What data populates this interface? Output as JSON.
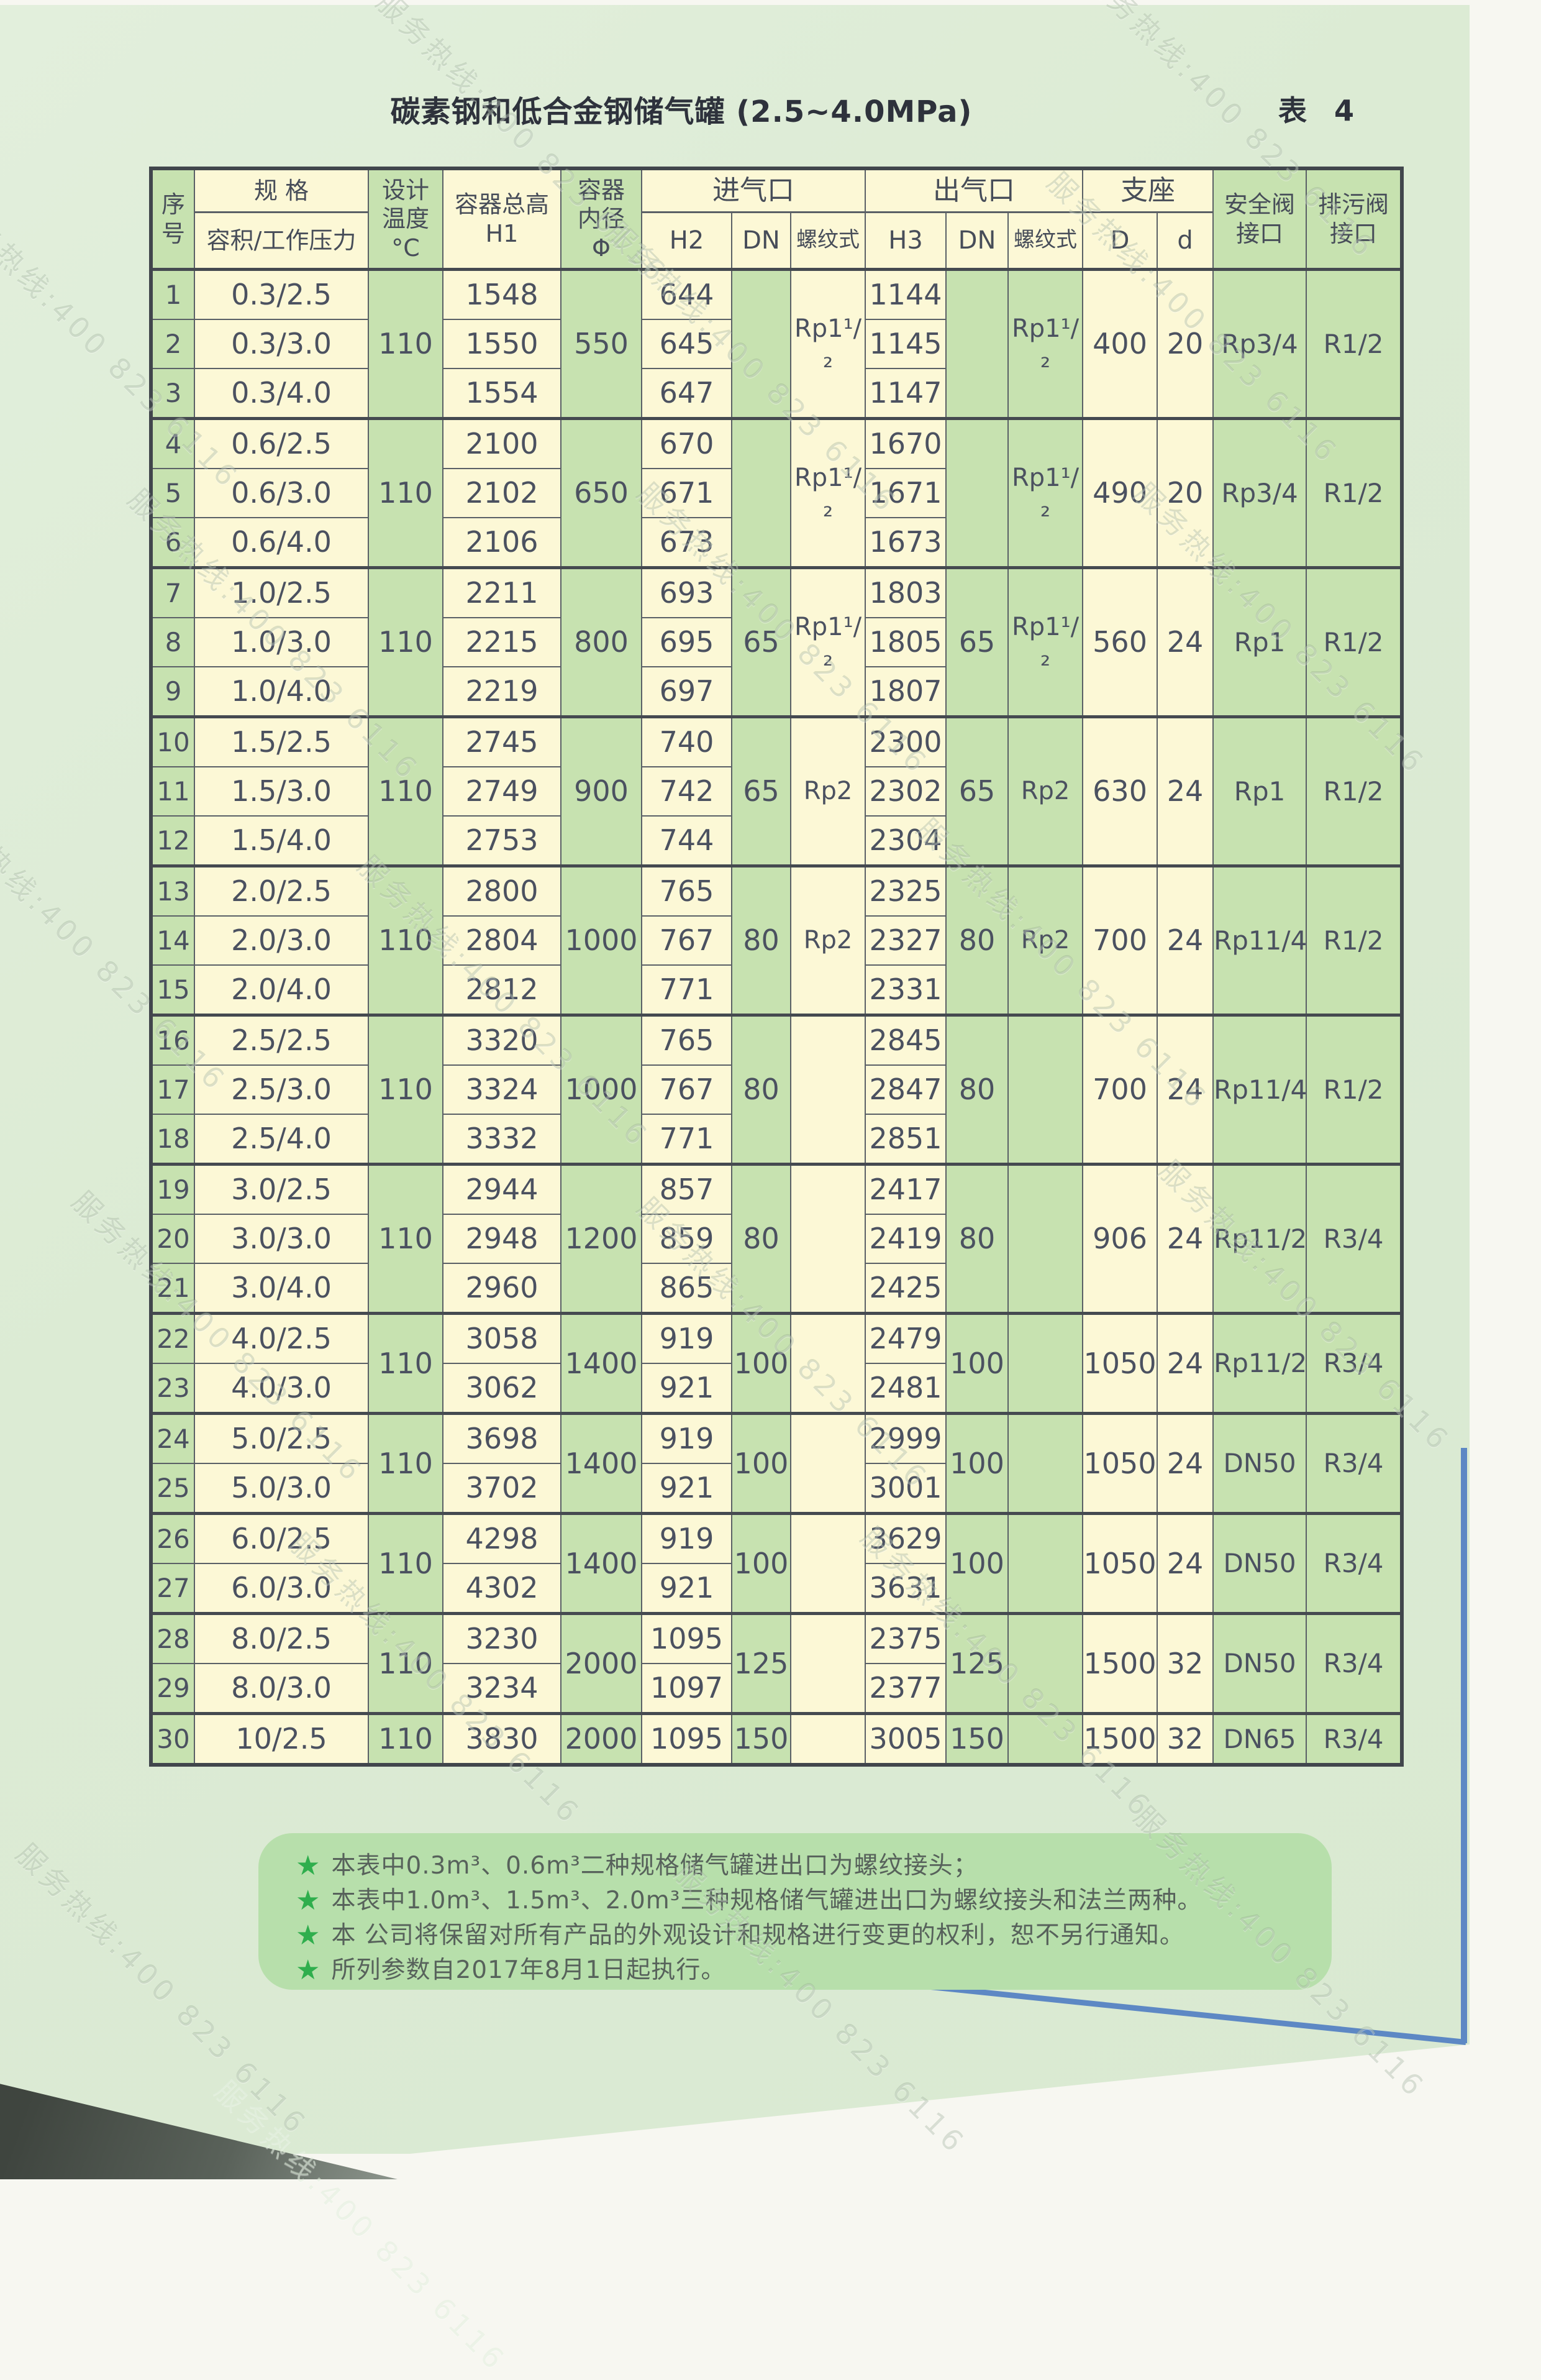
{
  "page": {
    "title": "碳素钢和低合金钢储气罐 (2.5~4.0MPa)",
    "table_label": "表 4"
  },
  "watermark": {
    "text": "服务热线:400 823 6116"
  },
  "table": {
    "header": {
      "serial": "序\n号",
      "spec": "规  格",
      "spec_sub": "容积/工作压力",
      "temp": "设计\n温度\n°C",
      "h1": "容器总高\nH1",
      "phi": "容器\n内径\nΦ",
      "inlet": "进气口",
      "outlet": "出气口",
      "support": "支座",
      "h2": "H2",
      "dn": "DN",
      "thread": "螺纹式",
      "h3": "H3",
      "D": "D",
      "d": "d",
      "safety": "安全阀\n接口",
      "drain": "排污阀\n接口"
    },
    "groups": [
      {
        "rows": [
          [
            "1",
            "0.3/2.5",
            "1548",
            "644",
            "1144"
          ],
          [
            "2",
            "0.3/3.0",
            "1550",
            "645",
            "1145"
          ],
          [
            "3",
            "0.3/4.0",
            "1554",
            "647",
            "1147"
          ]
        ],
        "temp": "110",
        "phi": "550",
        "dn_in": "",
        "thread_in": "Rp1¹/₂",
        "dn_out": "",
        "thread_out": "Rp1¹/₂",
        "D": "400",
        "d": "20",
        "safety": "Rp3/4",
        "drain": "R1/2"
      },
      {
        "rows": [
          [
            "4",
            "0.6/2.5",
            "2100",
            "670",
            "1670"
          ],
          [
            "5",
            "0.6/3.0",
            "2102",
            "671",
            "1671"
          ],
          [
            "6",
            "0.6/4.0",
            "2106",
            "673",
            "1673"
          ]
        ],
        "temp": "110",
        "phi": "650",
        "dn_in": "",
        "thread_in": "Rp1¹/₂",
        "dn_out": "",
        "thread_out": "Rp1¹/₂",
        "D": "490",
        "d": "20",
        "safety": "Rp3/4",
        "drain": "R1/2"
      },
      {
        "rows": [
          [
            "7",
            "1.0/2.5",
            "2211",
            "693",
            "1803"
          ],
          [
            "8",
            "1.0/3.0",
            "2215",
            "695",
            "1805"
          ],
          [
            "9",
            "1.0/4.0",
            "2219",
            "697",
            "1807"
          ]
        ],
        "temp": "110",
        "phi": "800",
        "dn_in": "65",
        "thread_in": "Rp1¹/₂",
        "dn_out": "65",
        "thread_out": "Rp1¹/₂",
        "D": "560",
        "d": "24",
        "safety": "Rp1",
        "drain": "R1/2"
      },
      {
        "rows": [
          [
            "10",
            "1.5/2.5",
            "2745",
            "740",
            "2300"
          ],
          [
            "11",
            "1.5/3.0",
            "2749",
            "742",
            "2302"
          ],
          [
            "12",
            "1.5/4.0",
            "2753",
            "744",
            "2304"
          ]
        ],
        "temp": "110",
        "phi": "900",
        "dn_in": "65",
        "thread_in": "Rp2",
        "dn_out": "65",
        "thread_out": "Rp2",
        "D": "630",
        "d": "24",
        "safety": "Rp1",
        "drain": "R1/2"
      },
      {
        "rows": [
          [
            "13",
            "2.0/2.5",
            "2800",
            "765",
            "2325"
          ],
          [
            "14",
            "2.0/3.0",
            "2804",
            "767",
            "2327"
          ],
          [
            "15",
            "2.0/4.0",
            "2812",
            "771",
            "2331"
          ]
        ],
        "temp": "110",
        "phi": "1000",
        "dn_in": "80",
        "thread_in": "Rp2",
        "dn_out": "80",
        "thread_out": "Rp2",
        "D": "700",
        "d": "24",
        "safety": "Rp11/4",
        "drain": "R1/2"
      },
      {
        "rows": [
          [
            "16",
            "2.5/2.5",
            "3320",
            "765",
            "2845"
          ],
          [
            "17",
            "2.5/3.0",
            "3324",
            "767",
            "2847"
          ],
          [
            "18",
            "2.5/4.0",
            "3332",
            "771",
            "2851"
          ]
        ],
        "temp": "110",
        "phi": "1000",
        "dn_in": "80",
        "thread_in": "",
        "dn_out": "80",
        "thread_out": "",
        "D": "700",
        "d": "24",
        "safety": "Rp11/4",
        "drain": "R1/2"
      },
      {
        "rows": [
          [
            "19",
            "3.0/2.5",
            "2944",
            "857",
            "2417"
          ],
          [
            "20",
            "3.0/3.0",
            "2948",
            "859",
            "2419"
          ],
          [
            "21",
            "3.0/4.0",
            "2960",
            "865",
            "2425"
          ]
        ],
        "temp": "110",
        "phi": "1200",
        "dn_in": "80",
        "thread_in": "",
        "dn_out": "80",
        "thread_out": "",
        "D": "906",
        "d": "24",
        "safety": "Rp11/2",
        "drain": "R3/4"
      },
      {
        "rows": [
          [
            "22",
            "4.0/2.5",
            "3058",
            "919",
            "2479"
          ],
          [
            "23",
            "4.0/3.0",
            "3062",
            "921",
            "2481"
          ]
        ],
        "temp": "110",
        "phi": "1400",
        "dn_in": "100",
        "thread_in": "",
        "dn_out": "100",
        "thread_out": "",
        "D": "1050",
        "d": "24",
        "safety": "Rp11/2",
        "drain": "R3/4"
      },
      {
        "rows": [
          [
            "24",
            "5.0/2.5",
            "3698",
            "919",
            "2999"
          ],
          [
            "25",
            "5.0/3.0",
            "3702",
            "921",
            "3001"
          ]
        ],
        "temp": "110",
        "phi": "1400",
        "dn_in": "100",
        "thread_in": "",
        "dn_out": "100",
        "thread_out": "",
        "D": "1050",
        "d": "24",
        "safety": "DN50",
        "drain": "R3/4"
      },
      {
        "rows": [
          [
            "26",
            "6.0/2.5",
            "4298",
            "919",
            "3629"
          ],
          [
            "27",
            "6.0/3.0",
            "4302",
            "921",
            "3631"
          ]
        ],
        "temp": "110",
        "phi": "1400",
        "dn_in": "100",
        "thread_in": "",
        "dn_out": "100",
        "thread_out": "",
        "D": "1050",
        "d": "24",
        "safety": "DN50",
        "drain": "R3/4"
      },
      {
        "rows": [
          [
            "28",
            "8.0/2.5",
            "3230",
            "1095",
            "2375"
          ],
          [
            "29",
            "8.0/3.0",
            "3234",
            "1097",
            "2377"
          ]
        ],
        "temp": "110",
        "phi": "2000",
        "dn_in": "125",
        "thread_in": "",
        "dn_out": "125",
        "thread_out": "",
        "D": "1500",
        "d": "32",
        "safety": "DN50",
        "drain": "R3/4"
      },
      {
        "rows": [
          [
            "30",
            "10/2.5",
            "3830",
            "1095",
            "3005"
          ]
        ],
        "temp": "110",
        "phi": "2000",
        "dn_in": "150",
        "thread_in": "",
        "dn_out": "150",
        "thread_out": "",
        "D": "1500",
        "d": "32",
        "safety": "DN65",
        "drain": "R3/4"
      }
    ]
  },
  "notes": {
    "items": [
      "本表中0.3m³、0.6m³二种规格储气罐进出口为螺纹接头；",
      "本表中1.0m³、1.5m³、2.0m³三种规格储气罐进出口为螺纹接头和法兰两种。",
      "本 公司将保留对所有产品的外观设计和规格进行变更的权利，恕不另行通知。",
      "所列参数自2017年8月1日起执行。"
    ],
    "bullet": "★"
  }
}
